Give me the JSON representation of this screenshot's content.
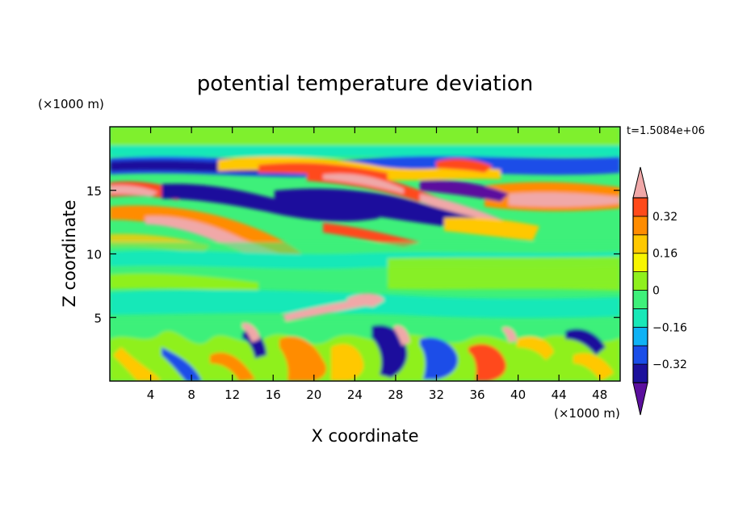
{
  "chart_data": {
    "type": "heatmap",
    "title": "potential temperature deviation",
    "time_label": "t=1.5084e+06",
    "xlabel": "X coordinate",
    "ylabel": "Z coordinate",
    "x_unit": "(×1000 m)",
    "y_unit": "(×1000 m)",
    "xlim": [
      0,
      50
    ],
    "ylim": [
      0,
      20
    ],
    "x_ticks": [
      4,
      8,
      12,
      16,
      20,
      24,
      28,
      32,
      36,
      40,
      44,
      48
    ],
    "y_ticks": [
      5,
      10,
      15
    ],
    "grid": false,
    "colorbar": {
      "levels": [
        -0.4,
        -0.32,
        -0.24,
        -0.16,
        -0.08,
        0,
        0.08,
        0.16,
        0.24,
        0.32,
        0.4
      ],
      "tick_labels": [
        "0.32",
        "0.16",
        "0",
        "−0.16",
        "−0.32"
      ],
      "tick_values": [
        0.32,
        0.16,
        0,
        -0.16,
        -0.32
      ],
      "colors": [
        "#5b0f9e",
        "#1c119c",
        "#1a4ee8",
        "#0fb2f5",
        "#18e8b8",
        "#3ef07a",
        "#8ff01d",
        "#f7f500",
        "#ffc800",
        "#ff8c00",
        "#ff4a1a",
        "#f0a8a8"
      ]
    }
  }
}
